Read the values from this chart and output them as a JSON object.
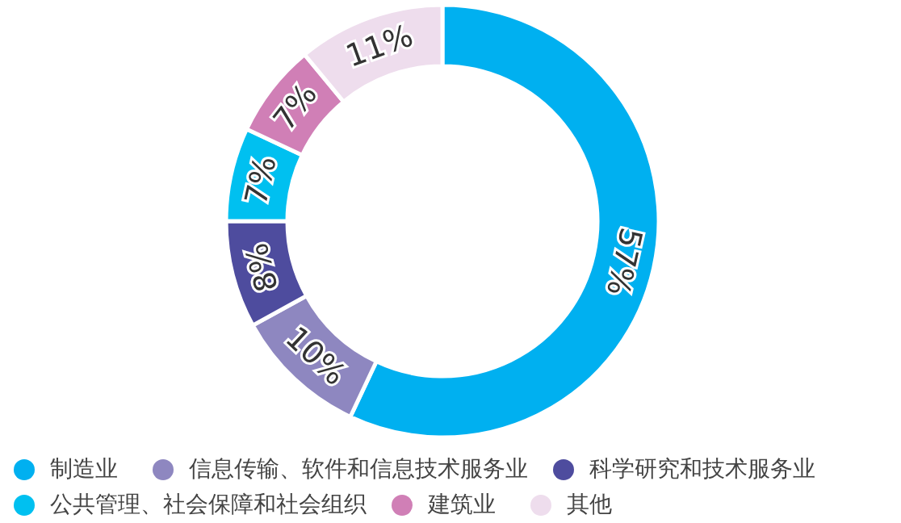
{
  "chart_data": {
    "type": "donut",
    "categories": [
      "制造业",
      "信息传输、软件和信息技术服务业",
      "科学研究和技术服务业",
      "公共管理、社会保障和社会组织",
      "建筑业",
      "其他"
    ],
    "values": [
      57,
      10,
      8,
      7,
      7,
      11
    ],
    "colors": [
      "#00b0f0",
      "#8e87c0",
      "#4e4c9e",
      "#00c0f0",
      "#d07fb6",
      "#eedded"
    ],
    "value_labels": [
      "57%",
      "10%",
      "8%",
      "7%",
      "7%",
      "11%"
    ],
    "legend": "bottom"
  }
}
